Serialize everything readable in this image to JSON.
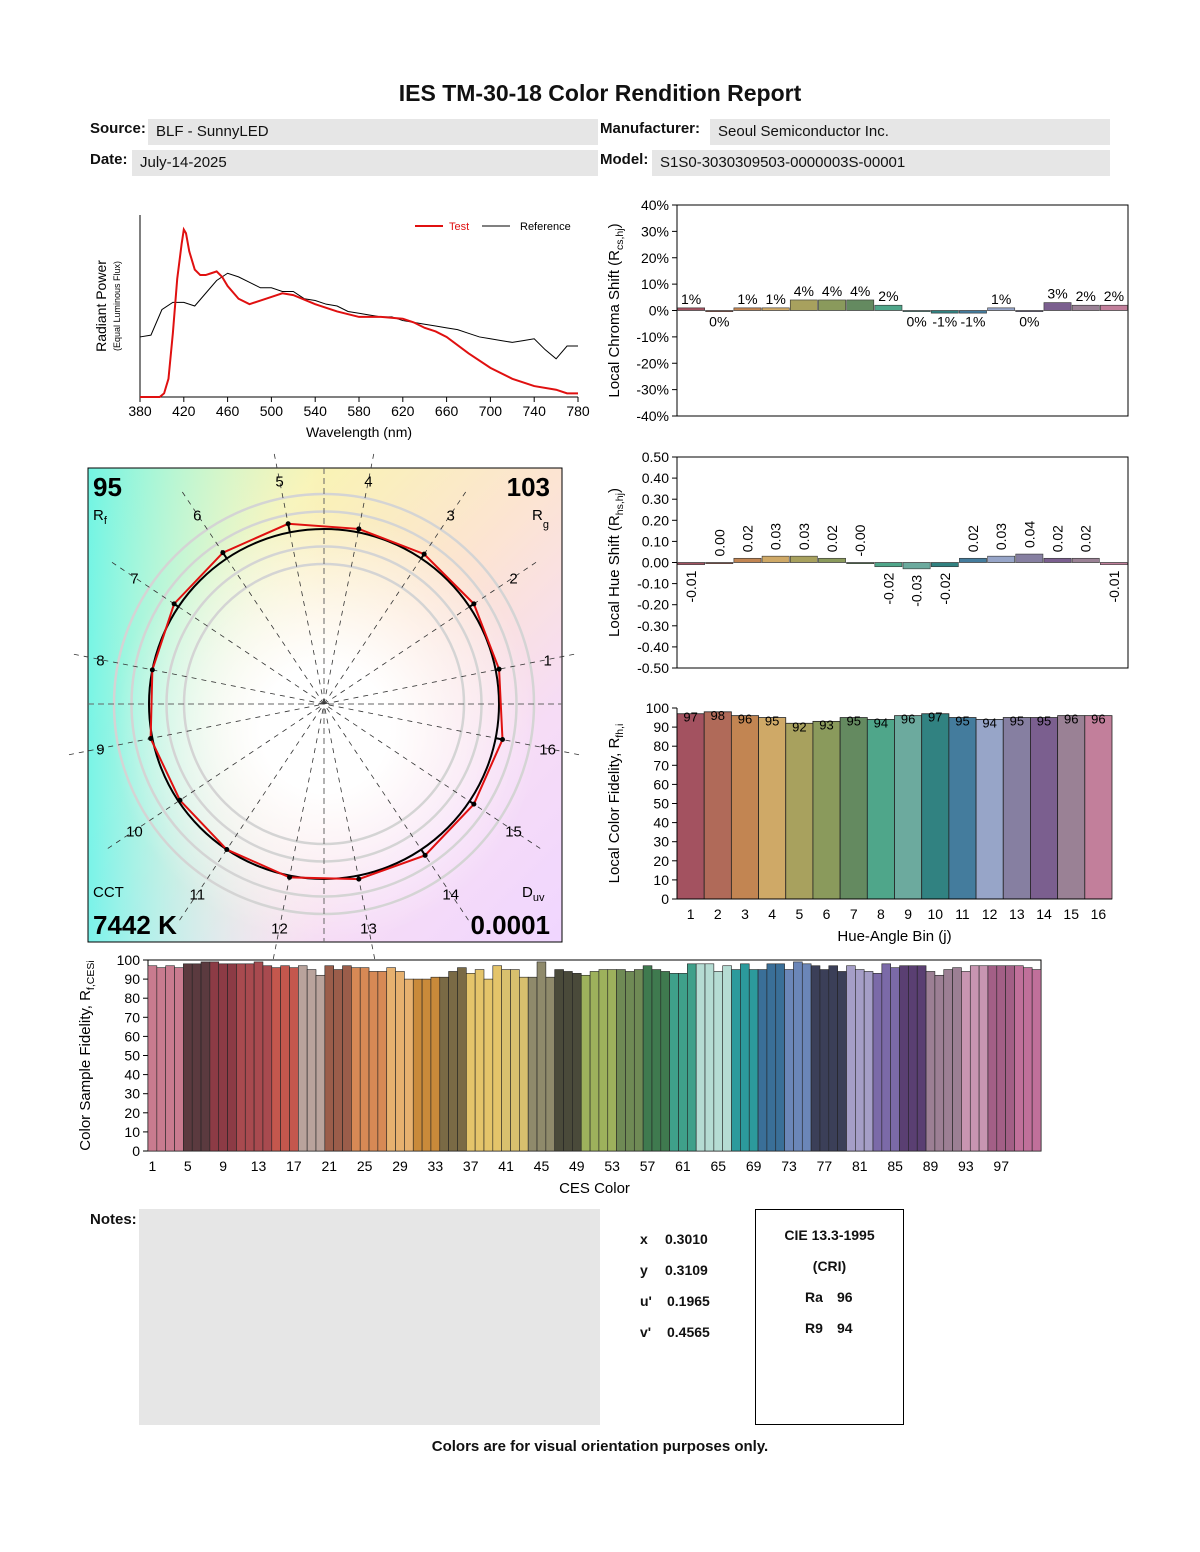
{
  "title": "IES TM-30-18 Color Rendition Report",
  "header": {
    "source_label": "Source:",
    "source": "BLF - SunnyLED",
    "manufacturer_label": "Manufacturer:",
    "manufacturer": "Seoul Semiconductor Inc.",
    "date_label": "Date:",
    "date": "July-14-2025",
    "model_label": "Model:",
    "model": "S1S0-3030309503-0000003S-00001"
  },
  "colors": {
    "test": "#e01010",
    "reference": "#000000",
    "bins": [
      "#a35260",
      "#b06a59",
      "#c28552",
      "#cfa967",
      "#a8a15e",
      "#8a9a5c",
      "#648a60",
      "#4fa68a",
      "#6caa9e",
      "#318281",
      "#447c9d",
      "#97a5c8",
      "#867fa1",
      "#7b5f8f",
      "#9a8195",
      "#c27f9b"
    ]
  },
  "values": {
    "rf": "95",
    "rf_label": "R",
    "rf_sub": "f",
    "rg": "103",
    "rg_label": "R",
    "rg_sub": "g",
    "cct_label": "CCT",
    "cct": "7442 K",
    "duv_label": "D",
    "duv_sub": "uv",
    "duv": "0.0001"
  },
  "chart_data": [
    {
      "name": "spectrum",
      "type": "line",
      "xlabel": "Wavelength (nm)",
      "ylabel": "Radiant Power",
      "ylabel_sub": "(Equal Luminous Flux)",
      "xlim": [
        380,
        780
      ],
      "xticks": [
        380,
        420,
        460,
        500,
        540,
        580,
        620,
        660,
        700,
        740,
        780
      ],
      "series": [
        {
          "name": "Test",
          "x": [
            380,
            398,
            402,
            406,
            410,
            414,
            418,
            420,
            422,
            425,
            430,
            435,
            440,
            445,
            450,
            455,
            460,
            470,
            480,
            490,
            500,
            510,
            520,
            540,
            560,
            580,
            600,
            620,
            630,
            640,
            650,
            660,
            680,
            700,
            720,
            740,
            760,
            770,
            780
          ],
          "y": [
            0,
            0,
            0.02,
            0.1,
            0.35,
            0.65,
            0.84,
            0.92,
            0.9,
            0.8,
            0.7,
            0.67,
            0.67,
            0.68,
            0.69,
            0.66,
            0.61,
            0.54,
            0.51,
            0.53,
            0.55,
            0.57,
            0.56,
            0.51,
            0.47,
            0.44,
            0.44,
            0.43,
            0.41,
            0.38,
            0.36,
            0.33,
            0.24,
            0.16,
            0.1,
            0.06,
            0.04,
            0.02,
            0.02
          ]
        },
        {
          "name": "Reference",
          "x": [
            380,
            390,
            400,
            410,
            420,
            430,
            440,
            450,
            460,
            470,
            480,
            490,
            500,
            510,
            520,
            530,
            540,
            550,
            560,
            570,
            580,
            590,
            600,
            610,
            620,
            630,
            640,
            650,
            660,
            670,
            680,
            690,
            700,
            710,
            720,
            730,
            740,
            750,
            760,
            770,
            780
          ],
          "y": [
            0.33,
            0.34,
            0.48,
            0.52,
            0.52,
            0.5,
            0.57,
            0.64,
            0.68,
            0.66,
            0.63,
            0.6,
            0.6,
            0.58,
            0.58,
            0.54,
            0.53,
            0.51,
            0.5,
            0.47,
            0.46,
            0.45,
            0.44,
            0.44,
            0.42,
            0.41,
            0.4,
            0.39,
            0.38,
            0.37,
            0.35,
            0.33,
            0.32,
            0.31,
            0.3,
            0.31,
            0.32,
            0.26,
            0.21,
            0.28,
            0.28
          ]
        }
      ]
    },
    {
      "name": "chroma_shift",
      "type": "bar",
      "ylabel": "Local Chroma Shift (R",
      "ylabel_sub": "cs,hj",
      "ylim": [
        -40,
        40
      ],
      "yticks": [
        "40%",
        "30%",
        "20%",
        "10%",
        "0%",
        "-10%",
        "-20%",
        "-30%",
        "-40%"
      ],
      "categories": [
        1,
        2,
        3,
        4,
        5,
        6,
        7,
        8,
        9,
        10,
        11,
        12,
        13,
        14,
        15,
        16
      ],
      "values": [
        1,
        0,
        1,
        1,
        4,
        4,
        4,
        2,
        0,
        -1,
        -1,
        1,
        0,
        3,
        2,
        2
      ],
      "labels": [
        "1%",
        "0%",
        "1%",
        "1%",
        "4%",
        "4%",
        "4%",
        "2%",
        "0%",
        "-1%",
        "-1%",
        "1%",
        "0%",
        "3%",
        "2%",
        "2%"
      ]
    },
    {
      "name": "hue_shift",
      "type": "bar",
      "ylabel": "Local Hue Shift (R",
      "ylabel_sub": "hs,hj",
      "ylim": [
        -0.5,
        0.5
      ],
      "yticks": [
        "0.50",
        "0.40",
        "0.30",
        "0.20",
        "0.10",
        "0.00",
        "-0.10",
        "-0.20",
        "-0.30",
        "-0.40",
        "-0.50"
      ],
      "categories": [
        1,
        2,
        3,
        4,
        5,
        6,
        7,
        8,
        9,
        10,
        11,
        12,
        13,
        14,
        15,
        16
      ],
      "values": [
        -0.01,
        0.0,
        0.02,
        0.03,
        0.03,
        0.02,
        -0.0,
        -0.02,
        -0.03,
        -0.02,
        0.02,
        0.03,
        0.04,
        0.02,
        0.02,
        -0.01
      ],
      "labels": [
        "-0.01",
        "0.00",
        "0.02",
        "0.03",
        "0.03",
        "0.02",
        "-0.00",
        "-0.02",
        "-0.03",
        "-0.02",
        "0.02",
        "0.03",
        "0.04",
        "0.02",
        "0.02",
        "-0.01"
      ]
    },
    {
      "name": "local_fidelity",
      "type": "bar",
      "xlabel": "Hue-Angle Bin (j)",
      "ylabel": "Local Color Fidelity, R",
      "ylabel_sub": "fh,i",
      "ylim": [
        0,
        100
      ],
      "yticks": [
        0,
        10,
        20,
        30,
        40,
        50,
        60,
        70,
        80,
        90,
        100
      ],
      "categories": [
        1,
        2,
        3,
        4,
        5,
        6,
        7,
        8,
        9,
        10,
        11,
        12,
        13,
        14,
        15,
        16
      ],
      "values": [
        97,
        98,
        96,
        95,
        92,
        93,
        95,
        94,
        96,
        97,
        95,
        94,
        95,
        95,
        96,
        96
      ]
    },
    {
      "name": "ces_fidelity",
      "type": "bar",
      "xlabel": "CES Color",
      "ylabel": "Color Sample Fidelity, R",
      "ylabel_sub": "f,CESi",
      "ylim": [
        0,
        100
      ],
      "yticks": [
        0,
        10,
        20,
        30,
        40,
        50,
        60,
        70,
        80,
        90,
        100
      ],
      "xtick_labels": [
        1,
        5,
        9,
        13,
        17,
        21,
        25,
        29,
        33,
        37,
        41,
        45,
        49,
        53,
        57,
        61,
        65,
        69,
        73,
        77,
        81,
        85,
        89,
        93,
        97
      ],
      "values": [
        97,
        96,
        97,
        96,
        98,
        98,
        99,
        99,
        98,
        98,
        98,
        98,
        99,
        97,
        96,
        97,
        96,
        97,
        95,
        92,
        97,
        95,
        97,
        96,
        96,
        94,
        94,
        96,
        94,
        90,
        90,
        90,
        91,
        91,
        94,
        96,
        93,
        95,
        90,
        97,
        95,
        95,
        91,
        91,
        99,
        91,
        95,
        94,
        93,
        92,
        94,
        95,
        95,
        95,
        94,
        95,
        97,
        95,
        94,
        93,
        93,
        98,
        98,
        98,
        94,
        97,
        95,
        98,
        95,
        95,
        98,
        98,
        95,
        99,
        98,
        97,
        95,
        97,
        94,
        97,
        95,
        94,
        93,
        98,
        96,
        97,
        97,
        97,
        94,
        92,
        95,
        96,
        94,
        97,
        97,
        97,
        97,
        97,
        97,
        96,
        95
      ]
    },
    {
      "name": "vector_graphic",
      "type": "line",
      "bin_labels": [
        "1",
        "2",
        "3",
        "4",
        "5",
        "6",
        "7",
        "8",
        "9",
        "10",
        "11",
        "12",
        "13",
        "14",
        "15",
        "16"
      ],
      "ref_radius": 1.0,
      "test_radii": [
        1.02,
        1.03,
        1.03,
        1.02,
        1.05,
        1.04,
        1.03,
        1.0,
        1.01,
        0.99,
        1.0,
        1.01,
        1.02,
        1.04,
        1.03,
        1.04
      ]
    }
  ],
  "cri": {
    "notes_label": "Notes:",
    "x_label": "x",
    "x": "0.3010",
    "y_label": "y",
    "y": "0.3109",
    "u_label": "u'",
    "u": "0.1965",
    "v_label": "v'",
    "v": "0.4565",
    "cie_title": "CIE 13.3-1995",
    "cie_sub": "(CRI)",
    "ra_label": "Ra",
    "ra": "96",
    "r9_label": "R9",
    "r9": "94"
  },
  "footer": "Colors are for visual orientation purposes only."
}
